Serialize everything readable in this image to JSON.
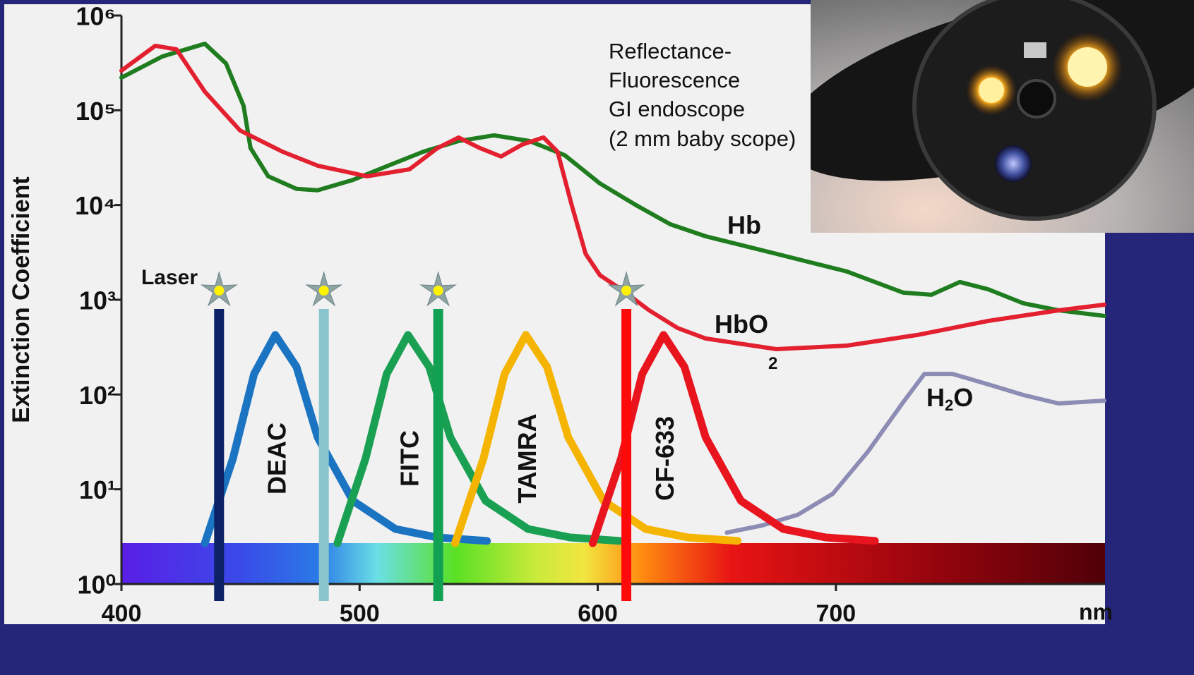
{
  "chart_data": {
    "type": "line",
    "ylog": true,
    "y_label": "Extinction Coefficient",
    "x_label": "nm",
    "xlim": [
      400,
      813
    ],
    "ylim": [
      1,
      1000000
    ],
    "xticks": [
      400,
      500,
      600,
      700
    ],
    "yticks": [
      {
        "value": 1,
        "label": "10⁰"
      },
      {
        "value": 10,
        "label": "10¹"
      },
      {
        "value": 100,
        "label": "10²"
      },
      {
        "value": 1000,
        "label": "10³"
      },
      {
        "value": 10000,
        "label": "10⁴"
      },
      {
        "value": 100000,
        "label": "10⁵"
      },
      {
        "value": 1000000,
        "label": "10⁶"
      }
    ],
    "annotation": [
      "Reflectance-",
      "Fluorescence",
      "GI endoscope",
      "(2 mm baby scope)"
    ],
    "lasers": {
      "label": "Laser",
      "x": [
        441,
        485,
        533,
        612
      ],
      "colors": [
        "#0b2266",
        "#8ac5cd",
        "#12a052",
        "#ff0a0a"
      ]
    },
    "series": [
      {
        "name": "Hb",
        "color": "#1f7d1f",
        "x": [
          400,
          417.2,
          435,
          443.9,
          451.3,
          454.2,
          461.6,
          473.5,
          482.4,
          497.2,
          512,
          526.8,
          541.6,
          556.4,
          571.3,
          586.1,
          600.9,
          615.7,
          630.5,
          645.3,
          675,
          704.6,
          728.3,
          740.1,
          752,
          763.9,
          778.7,
          793.5,
          812.7
        ],
        "values": [
          221000,
          370000,
          504000,
          312000,
          111000,
          39900,
          20100,
          14800,
          14300,
          18400,
          26000,
          36600,
          47400,
          54400,
          47400,
          33600,
          16900,
          10100,
          6260,
          4680,
          3050,
          1990,
          1190,
          1130,
          1540,
          1290,
          918,
          773,
          675
        ]
      },
      {
        "name": "HbO2",
        "color": "#e3202f",
        "x": [
          400,
          414.2,
          423.1,
          435,
          449.8,
          467.6,
          482.4,
          503.1,
          520.9,
          532.7,
          541.6,
          550.5,
          559.4,
          568.3,
          577.2,
          583.1,
          589,
          594.9,
          600.9,
          609.8,
          621.6,
          633.5,
          645.3,
          675,
          704.6,
          734.2,
          763.9,
          793.5,
          812.7
        ],
        "values": [
          262000,
          479000,
          440000,
          157000,
          61200,
          36600,
          26000,
          20100,
          23800,
          39900,
          51600,
          39900,
          32500,
          43500,
          51600,
          36600,
          10100,
          3050,
          1820,
          1290,
          773,
          504,
          390,
          301,
          328,
          425,
          598,
          773,
          887
        ]
      },
      {
        "name": "H2O",
        "color": "#8c8cb4",
        "x": [
          654.2,
          669,
          683.9,
          698.7,
          713.5,
          728.3,
          737.2,
          749,
          763.9,
          778.7,
          793.5,
          812.7
        ],
        "values": [
          3.49,
          4.15,
          5.37,
          8.97,
          25.1,
          83.3,
          165,
          165,
          128,
          98.9,
          80.5,
          86.2
        ]
      },
      {
        "name": "DEAC",
        "color": "#1b74c2",
        "x": [
          435,
          446.8,
          455.7,
          464.6,
          473.5,
          482.4,
          497.2,
          515,
          532.7,
          553.5
        ],
        "values": [
          2.7,
          21.1,
          165,
          425,
          196,
          35.3,
          7.56,
          3.81,
          3.1,
          2.85
        ]
      },
      {
        "name": "FITC",
        "color": "#1aa052",
        "x": [
          490.7,
          502.5,
          511.4,
          520.3,
          529.2,
          538.1,
          552.9,
          570.7,
          588.4,
          609.2
        ],
        "values": [
          2.7,
          21.1,
          165,
          425,
          196,
          35.3,
          7.56,
          3.81,
          3.1,
          2.85
        ]
      },
      {
        "name": "TAMRA",
        "color": "#f5b400",
        "x": [
          540.1,
          552,
          560.9,
          569.8,
          578.7,
          587.6,
          602.4,
          620.1,
          637.9,
          658.7
        ],
        "values": [
          2.7,
          21.1,
          165,
          425,
          196,
          35.3,
          7.56,
          3.81,
          3.1,
          2.85
        ]
      },
      {
        "name": "CF-633",
        "color": "#e8141e",
        "x": [
          597.9,
          609.8,
          618.7,
          627.6,
          636.4,
          645.3,
          660.1,
          677.9,
          695.7,
          716.4
        ],
        "values": [
          2.7,
          21.1,
          165,
          425,
          196,
          35.3,
          7.56,
          3.81,
          3.1,
          2.85
        ]
      }
    ]
  }
}
